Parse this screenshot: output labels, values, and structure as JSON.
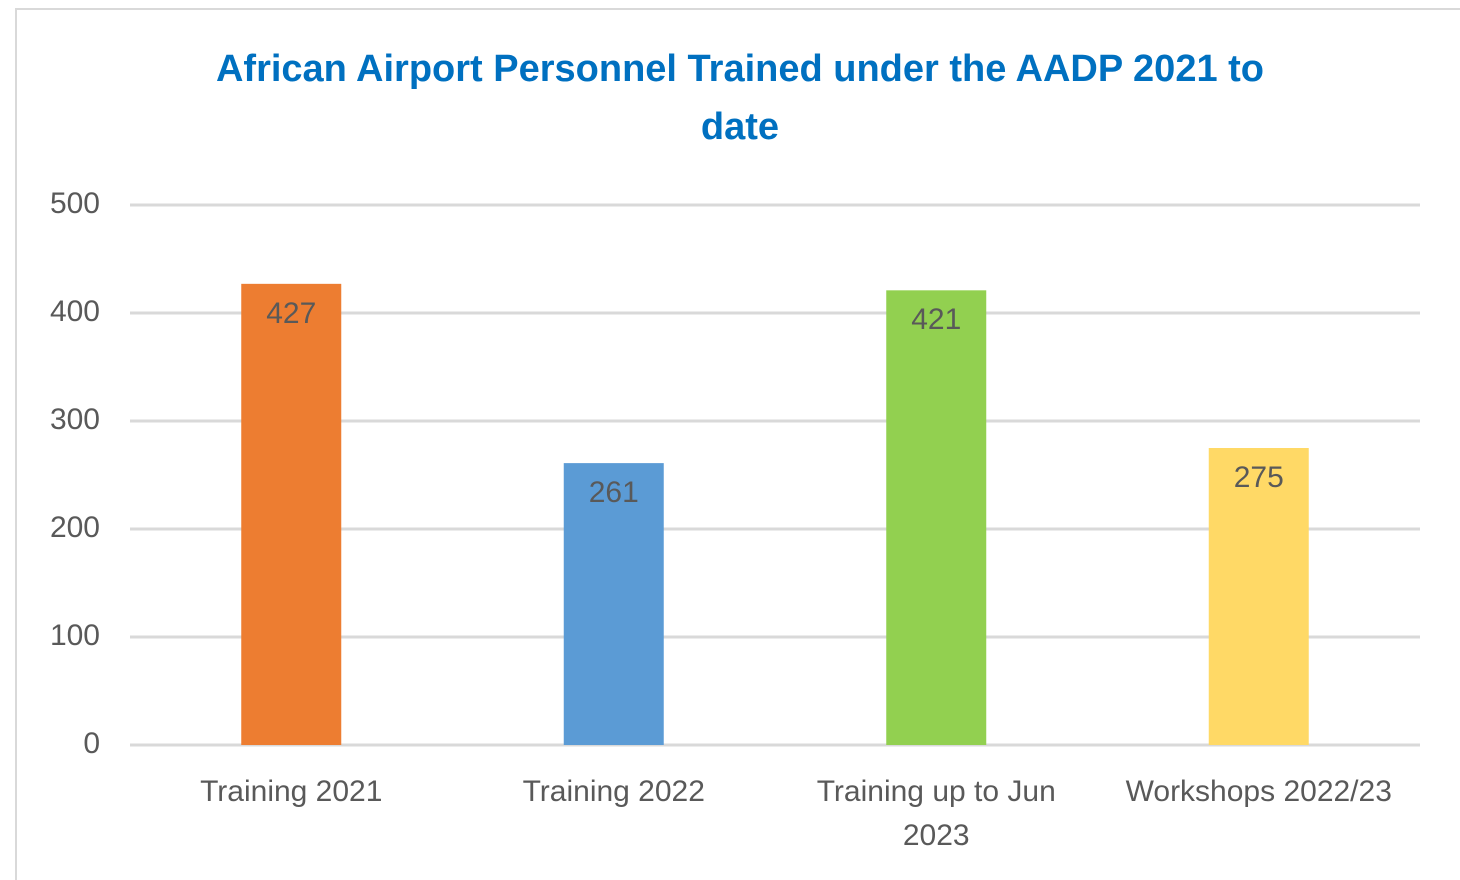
{
  "chart_data": {
    "type": "bar",
    "title": "African Airport Personnel Trained under the AADP 2021 to date",
    "categories": [
      "Training 2021",
      "Training 2022",
      "Training up to Jun 2023",
      "Workshops 2022/23"
    ],
    "values": [
      427,
      261,
      421,
      275
    ],
    "colors": [
      "#ed7d31",
      "#5b9bd5",
      "#92d050",
      "#ffd966"
    ],
    "ylim": [
      0,
      500
    ],
    "yticks": [
      0,
      100,
      200,
      300,
      400,
      500
    ],
    "grid": true
  }
}
